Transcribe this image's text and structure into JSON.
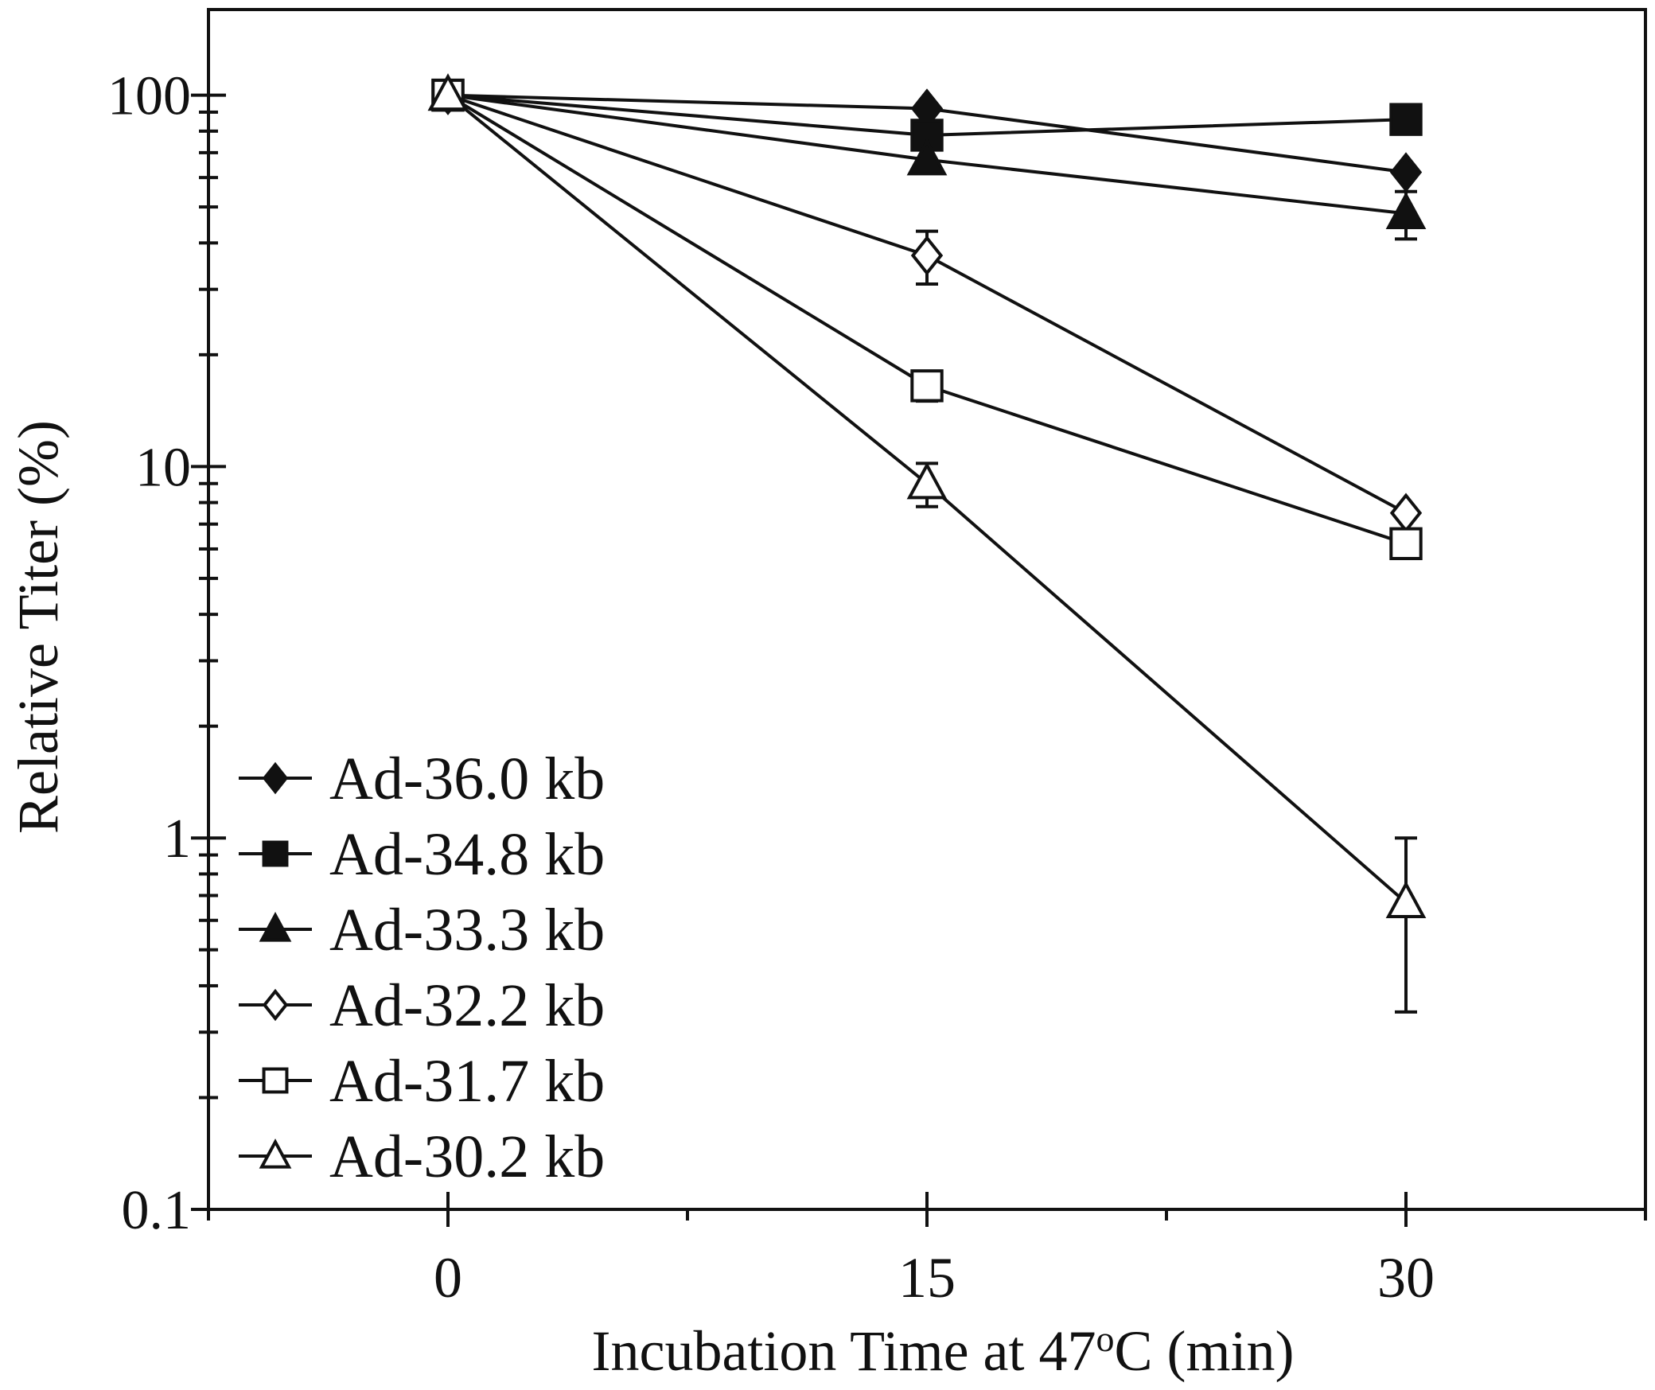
{
  "chart_data": {
    "type": "line",
    "title": "",
    "xlabel": "Incubation Time at 47",
    "xlabel_degree": "o",
    "xlabel_suffix": "C (min)",
    "ylabel": "Relative Titer (%)",
    "x": [
      0,
      15,
      30
    ],
    "x_ticks": [
      "0",
      "15",
      "30"
    ],
    "xlim": [
      -7.5,
      37.5
    ],
    "ylim": [
      0.1,
      170
    ],
    "y_scale": "log",
    "y_ticks": [
      "0.1",
      "1",
      "10",
      "100"
    ],
    "grid": false,
    "legend_position": "bottom-left",
    "series": [
      {
        "name": "Ad-36.0 kb",
        "marker": "diamond",
        "filled": true,
        "values": [
          100,
          92,
          62
        ],
        "err": [
          0,
          0,
          0
        ]
      },
      {
        "name": "Ad-34.8 kb",
        "marker": "square",
        "filled": true,
        "values": [
          100,
          78,
          86
        ],
        "err": [
          0,
          0,
          0
        ]
      },
      {
        "name": "Ad-33.3 kb",
        "marker": "triangle",
        "filled": true,
        "values": [
          100,
          67,
          48
        ],
        "err": [
          0,
          0,
          7
        ]
      },
      {
        "name": "Ad-32.2 kb",
        "marker": "diamond",
        "filled": false,
        "values": [
          100,
          37,
          7.5
        ],
        "err": [
          0,
          6,
          0
        ]
      },
      {
        "name": "Ad-31.7 kb",
        "marker": "square",
        "filled": false,
        "values": [
          100,
          16.5,
          6.2
        ],
        "err": [
          0,
          1.5,
          0
        ]
      },
      {
        "name": "Ad-30.2 kb",
        "marker": "triangle",
        "filled": false,
        "values": [
          100,
          9,
          0.67
        ],
        "err": [
          0,
          1.2,
          0.33
        ]
      }
    ]
  }
}
